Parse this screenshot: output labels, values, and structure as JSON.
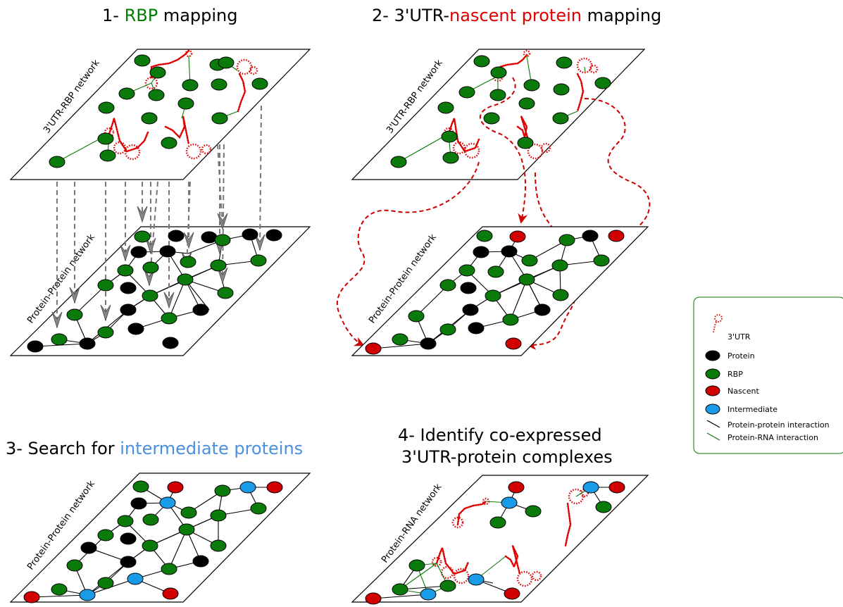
{
  "panels": [
    {
      "number": "1-",
      "highlight": "RBP",
      "highlight_color": "#008000",
      "suffix": " mapping"
    },
    {
      "number": "2- 3'UTR-",
      "highlight": "nascent protein",
      "highlight_color": "#e00000",
      "suffix": " mapping"
    },
    {
      "number": "3- Search for ",
      "highlight": "intermediate proteins",
      "highlight_color": "#4a90e2",
      "suffix": ""
    },
    {
      "line1": "4- Identify co-expressed",
      "line2": "3'UTR-protein complexes"
    }
  ],
  "plane_labels": {
    "utr_rbp": "3'UTR-RBP network",
    "ppi": "Protein-Protein network",
    "prot_rna": "Protein-RNA network"
  },
  "legend": {
    "items": [
      {
        "label": "3'UTR",
        "kind": "utr"
      },
      {
        "label": "Protein",
        "kind": "node",
        "color": "#000000"
      },
      {
        "label": "RBP",
        "kind": "node",
        "color": "#0a7a0a"
      },
      {
        "label": "Nascent",
        "kind": "node",
        "color": "#d00000"
      },
      {
        "label": "Intermediate",
        "kind": "node",
        "color": "#1a9be8"
      },
      {
        "label": "Protein-protein interaction",
        "kind": "line",
        "color": "#000000"
      },
      {
        "label": "Protein-RNA interaction",
        "kind": "line",
        "color": "#0a7a0a"
      }
    ],
    "border_color": "#0a7a0a"
  },
  "colors": {
    "protein": "#000000",
    "rbp": "#0a7a0a",
    "nascent": "#d00000",
    "intermediate": "#1a9be8",
    "utr": "#e00000",
    "arrow_gray": "#808080"
  }
}
